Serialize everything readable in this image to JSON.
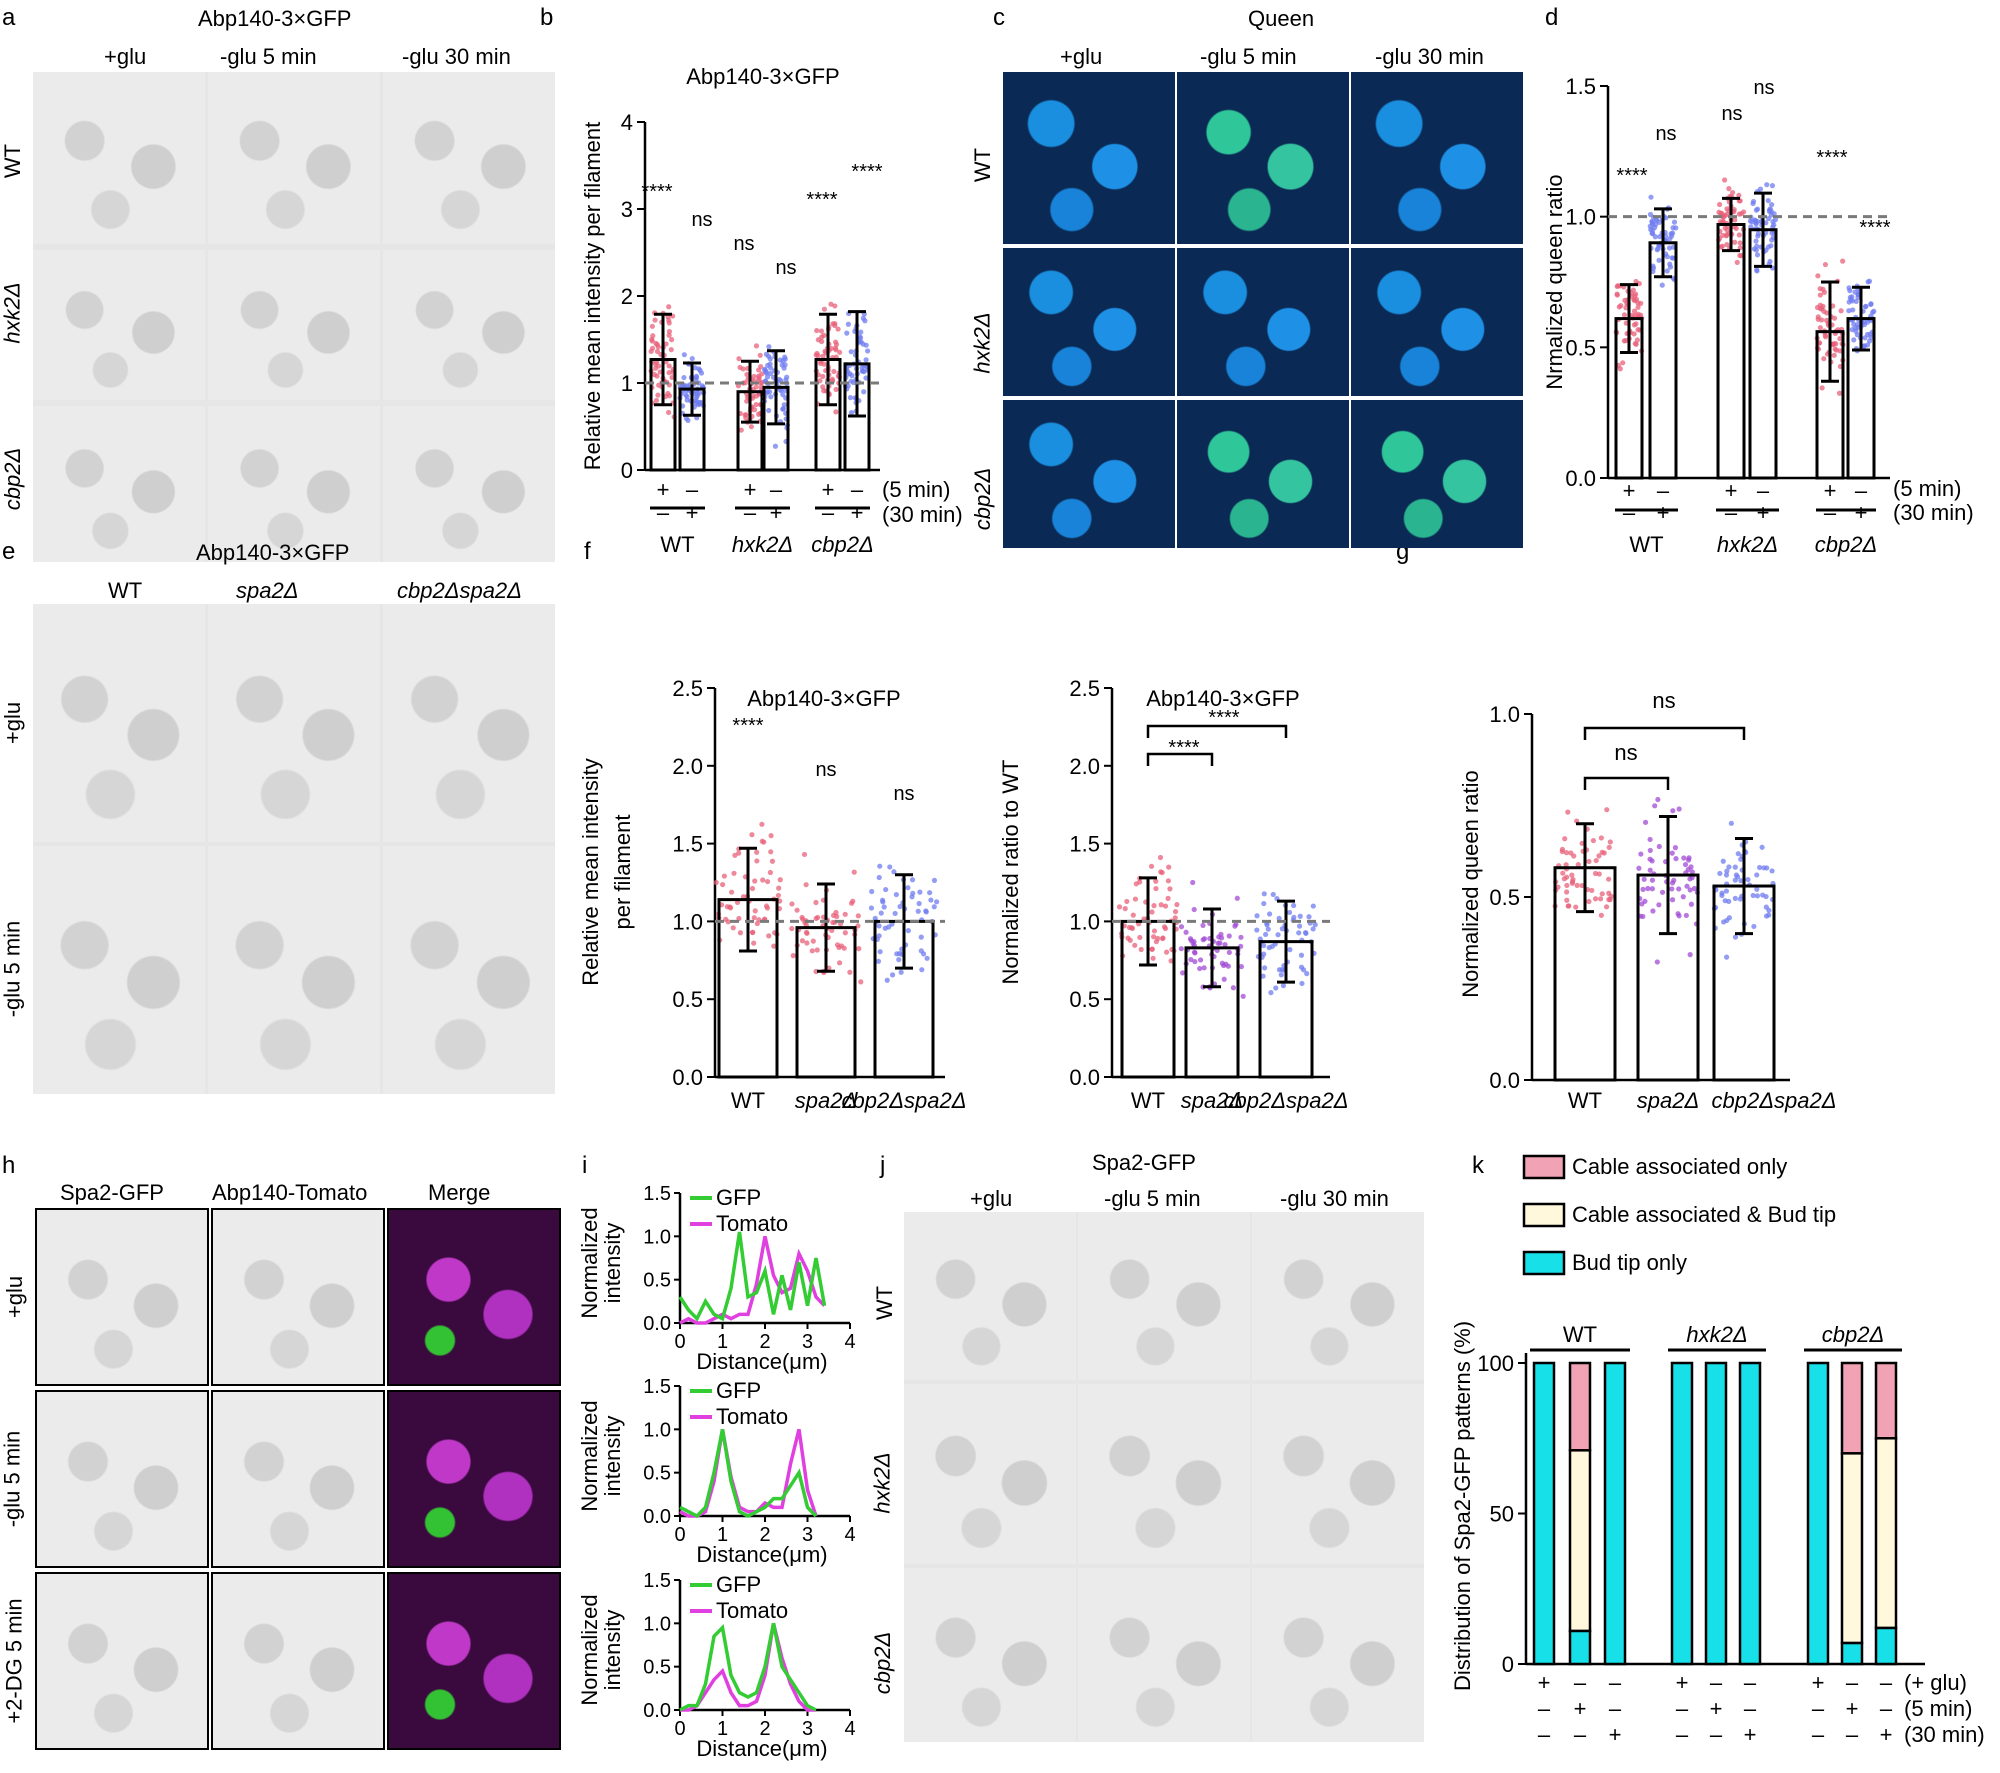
{
  "panel_labels": [
    "a",
    "b",
    "c",
    "d",
    "e",
    "f",
    "g",
    "h",
    "i",
    "j",
    "k"
  ],
  "a": {
    "title": "Abp140-3×GFP",
    "cols": [
      "+glu",
      "-glu 5 min",
      "-glu 30 min"
    ],
    "rows": [
      "WT",
      "hxk2Δ",
      "cbp2Δ"
    ]
  },
  "c": {
    "title": "Queen",
    "cols": [
      "+glu",
      "-glu 5 min",
      "-glu 30 min"
    ],
    "rows": [
      "WT",
      "hxk2Δ",
      "cbp2Δ"
    ]
  },
  "e": {
    "title": "Abp140-3×GFP",
    "cols": [
      "WT",
      "spa2Δ",
      "cbp2Δspa2Δ"
    ],
    "rows": [
      "+glu",
      "-glu 5 min"
    ]
  },
  "h": {
    "cols": [
      "Spa2-GFP",
      "Abp140-Tomato",
      "Merge"
    ],
    "rows": [
      "+glu",
      "-glu 5 min",
      "+2-DG 5 min"
    ]
  },
  "j": {
    "title": "Spa2-GFP",
    "cols": [
      "+glu",
      "-glu 5 min",
      "-glu 30 min"
    ],
    "rows": [
      "WT",
      "hxk2Δ",
      "cbp2Δ"
    ]
  },
  "colors": {
    "pink": "#e8607a",
    "blue": "#6f7cf0",
    "purple": "#a14ad6",
    "cyan": "#18e0e8",
    "cream": "#fff8dc",
    "rose": "#f1a2b4",
    "green": "#33cc33",
    "magenta": "#e040e0",
    "gray_dash": "#7a7a7a"
  },
  "chart_data": [
    {
      "id": "b",
      "type": "bar",
      "title": "Abp140-3×GFP",
      "ylabel": "Relative mean intensity per filament",
      "ylim": [
        0,
        4
      ],
      "yticks": [
        "0",
        "1",
        "2",
        "3",
        "4"
      ],
      "values": [
        1.27,
        0.93,
        0.9,
        0.95,
        1.27,
        1.22
      ],
      "errors": [
        0.52,
        0.3,
        0.35,
        0.42,
        0.52,
        0.6
      ],
      "stars": [
        "****",
        "ns",
        "ns",
        "ns",
        "****",
        "****"
      ],
      "row1": [
        "+",
        "–",
        "+",
        "–",
        "+",
        "–"
      ],
      "row2": [
        "–",
        "+",
        "–",
        "+",
        "–",
        "+"
      ],
      "row1_label": "(5 min)",
      "row2_label": "(30 min)",
      "groups": [
        "WT",
        "hxk2Δ",
        "cbp2Δ"
      ]
    },
    {
      "id": "d",
      "type": "bar",
      "title": "",
      "ylabel": "Nrmalized queen ratio",
      "ylim": [
        0,
        1.5
      ],
      "yticks": [
        "0.0",
        "0.5",
        "1.0",
        "1.5"
      ],
      "values": [
        0.61,
        0.9,
        0.97,
        0.95,
        0.56,
        0.61
      ],
      "errors": [
        0.13,
        0.13,
        0.1,
        0.14,
        0.19,
        0.12
      ],
      "stars": [
        "****",
        "ns",
        "ns",
        "ns",
        "****",
        "****"
      ],
      "row1": [
        "+",
        "–",
        "+",
        "–",
        "+",
        "–"
      ],
      "row2": [
        "–",
        "+",
        "–",
        "+",
        "–",
        "+"
      ],
      "row1_label": "(5 min)",
      "row2_label": "(30 min)",
      "groups": [
        "WT",
        "hxk2Δ",
        "cbp2Δ"
      ]
    },
    {
      "id": "f1",
      "type": "bar",
      "title": "Abp140-3×GFP",
      "ylabel": "Relative mean intensity per filament",
      "ylim": [
        0,
        2.5
      ],
      "yticks": [
        "0.0",
        "0.5",
        "1.0",
        "1.5",
        "2.0",
        "2.5"
      ],
      "categories": [
        "WT",
        "spa2Δ",
        "cbp2Δspa2Δ"
      ],
      "values": [
        1.14,
        0.96,
        1.0
      ],
      "errors": [
        0.33,
        0.28,
        0.3
      ],
      "stars": [
        "****",
        "ns",
        "ns"
      ]
    },
    {
      "id": "f2",
      "type": "bar",
      "title": "Abp140-3×GFP",
      "ylabel": "Normalized ratio to WT",
      "ylim": [
        0,
        2.5
      ],
      "yticks": [
        "0.0",
        "0.5",
        "1.0",
        "1.5",
        "2.0",
        "2.5"
      ],
      "categories": [
        "WT",
        "spa2Δ",
        "cbp2Δspa2Δ"
      ],
      "values": [
        1.0,
        0.83,
        0.87
      ],
      "errors": [
        0.28,
        0.25,
        0.26
      ],
      "brackets": [
        "****",
        "****"
      ]
    },
    {
      "id": "g",
      "type": "bar",
      "title": "",
      "ylabel": "Normalized queen ratio",
      "ylim": [
        0,
        1.0
      ],
      "yticks": [
        "0.0",
        "0.5",
        "1.0"
      ],
      "categories": [
        "WT",
        "spa2Δ",
        "cbp2Δspa2Δ"
      ],
      "values": [
        0.58,
        0.56,
        0.53
      ],
      "errors": [
        0.12,
        0.16,
        0.13
      ],
      "brackets": [
        "ns",
        "ns"
      ]
    },
    {
      "id": "i",
      "type": "line",
      "ylabel": "Normalized intensity",
      "xlabel": "Distance(μm)",
      "xlim": [
        0,
        4
      ],
      "ylim": [
        0,
        1.5
      ],
      "xticks": [
        "0",
        "1",
        "2",
        "3",
        "4"
      ],
      "yticks": [
        "0.0",
        "0.5",
        "1.0",
        "1.5"
      ],
      "legend": [
        "GFP",
        "Tomato"
      ],
      "plots": [
        {
          "x": [
            0,
            0.2,
            0.4,
            0.6,
            0.8,
            1.0,
            1.2,
            1.4,
            1.6,
            1.8,
            2.0,
            2.2,
            2.4,
            2.6,
            2.8,
            3.0,
            3.2,
            3.4
          ],
          "gfp": [
            0.3,
            0.15,
            0.05,
            0.25,
            0.1,
            0.05,
            0.4,
            1.05,
            0.3,
            0.35,
            0.6,
            0.1,
            0.55,
            0.15,
            0.7,
            0.2,
            0.75,
            0.2
          ],
          "tomato": [
            0.0,
            0.05,
            0.0,
            0.0,
            0.05,
            0.1,
            0.05,
            0.1,
            0.1,
            0.45,
            1.0,
            0.55,
            0.35,
            0.4,
            0.8,
            0.6,
            0.3,
            0.2
          ]
        },
        {
          "x": [
            0,
            0.2,
            0.4,
            0.6,
            0.8,
            1.0,
            1.2,
            1.4,
            1.6,
            1.8,
            2.0,
            2.2,
            2.4,
            2.6,
            2.8,
            3.0,
            3.2
          ],
          "gfp": [
            0.1,
            0.05,
            0.0,
            0.1,
            0.5,
            1.0,
            0.4,
            0.05,
            0.0,
            0.05,
            0.1,
            0.2,
            0.2,
            0.35,
            0.5,
            0.1,
            0.0
          ],
          "tomato": [
            0.05,
            0.0,
            0.0,
            0.05,
            0.4,
            1.0,
            0.45,
            0.1,
            0.05,
            0.05,
            0.15,
            0.1,
            0.1,
            0.6,
            1.0,
            0.3,
            0.0
          ]
        },
        {
          "x": [
            0,
            0.2,
            0.4,
            0.6,
            0.8,
            1.0,
            1.2,
            1.4,
            1.6,
            1.8,
            2.0,
            2.2,
            2.4,
            2.6,
            2.8,
            3.0,
            3.2
          ],
          "gfp": [
            0.0,
            0.05,
            0.05,
            0.3,
            0.85,
            0.95,
            0.4,
            0.2,
            0.15,
            0.2,
            0.5,
            1.0,
            0.5,
            0.35,
            0.2,
            0.05,
            0.0
          ],
          "tomato": [
            0.0,
            0.0,
            0.05,
            0.2,
            0.35,
            0.45,
            0.2,
            0.05,
            0.05,
            0.1,
            0.4,
            1.0,
            0.6,
            0.3,
            0.1,
            0.0,
            0.0
          ]
        }
      ]
    },
    {
      "id": "k",
      "type": "bar",
      "stacked": true,
      "ylabel": "Distribution of Spa2-GFP patterns (%)",
      "ylim": [
        0,
        100
      ],
      "yticks": [
        "0",
        "50",
        "100"
      ],
      "legend": [
        "Cable associated only",
        "Cable associated & Bud tip",
        "Bud tip only"
      ],
      "groups": [
        "WT",
        "hxk2Δ",
        "cbp2Δ"
      ],
      "row1": [
        "+",
        "–",
        "–",
        "+",
        "–",
        "–",
        "+",
        "–",
        "–"
      ],
      "row2": [
        "–",
        "+",
        "–",
        "–",
        "+",
        "–",
        "–",
        "+",
        "–"
      ],
      "row3": [
        "–",
        "–",
        "+",
        "–",
        "–",
        "+",
        "–",
        "–",
        "+"
      ],
      "row_labels": [
        "(+ glu)",
        "(5 min)",
        "(30 min)"
      ],
      "bud_tip": [
        100,
        11,
        100,
        100,
        100,
        100,
        100,
        7,
        12
      ],
      "cable_bud": [
        0,
        60,
        0,
        0,
        0,
        0,
        0,
        63,
        63
      ],
      "cable_only": [
        0,
        29,
        0,
        0,
        0,
        0,
        0,
        30,
        25
      ]
    }
  ]
}
